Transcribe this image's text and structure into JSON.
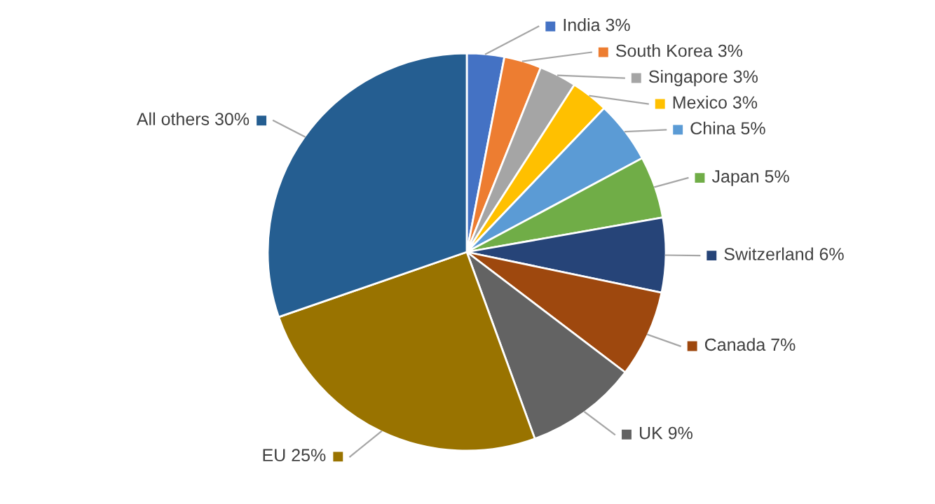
{
  "chart_data": {
    "type": "pie",
    "categories": [
      "India",
      "South Korea",
      "Singapore",
      "Mexico",
      "China",
      "Japan",
      "Switzerland",
      "Canada",
      "UK",
      "EU",
      "All others"
    ],
    "values": [
      3,
      3,
      3,
      3,
      5,
      5,
      6,
      7,
      9,
      25,
      30
    ],
    "value_labels": [
      "3%",
      "3%",
      "3%",
      "3%",
      "5%",
      "5%",
      "6%",
      "7%",
      "9%",
      "25%",
      "30%"
    ],
    "colors": [
      "#4472c4",
      "#ed7d31",
      "#a5a5a5",
      "#ffc000",
      "#5b9bd5",
      "#70ad47",
      "#264478",
      "#9e480e",
      "#636363",
      "#997300",
      "#255e91"
    ],
    "legend": "right"
  }
}
